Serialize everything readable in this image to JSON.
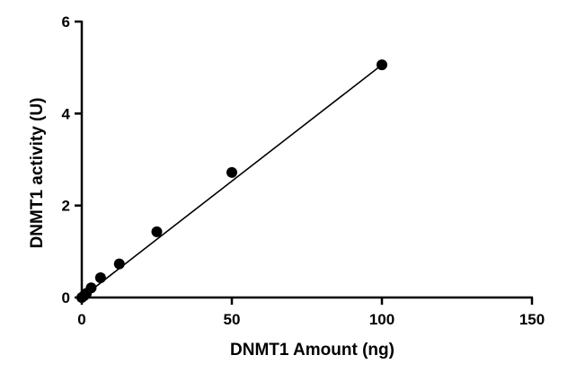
{
  "chart_data": {
    "type": "scatter",
    "title": "",
    "xlabel": "DNMT1 Amount (ng)",
    "ylabel": "DNMT1 activity (U)",
    "xlim": [
      0,
      150
    ],
    "ylim": [
      0,
      6
    ],
    "xticks": [
      0,
      50,
      100,
      150
    ],
    "yticks": [
      0,
      2,
      4,
      6
    ],
    "xtick_labels": [
      "0",
      "50",
      "100",
      "150"
    ],
    "ytick_labels": [
      "0",
      "2",
      "4",
      "6"
    ],
    "grid": false,
    "legend": "none",
    "x": [
      0,
      0.78,
      1.56,
      3.13,
      6.25,
      12.5,
      25,
      50,
      100
    ],
    "y": [
      0,
      0.04,
      0.09,
      0.21,
      0.43,
      0.73,
      1.43,
      2.72,
      5.06
    ],
    "fit_line": {
      "x": [
        0,
        100
      ],
      "y": [
        0,
        5.06
      ]
    },
    "colors": {
      "points": "#000000",
      "line": "#000000",
      "axes": "#000000"
    }
  }
}
